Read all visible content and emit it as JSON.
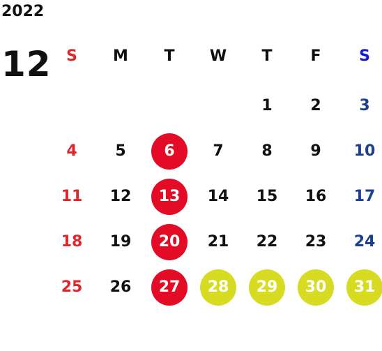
{
  "header": {
    "year": "2022",
    "month": "12"
  },
  "weekdays": [
    "S",
    "M",
    "T",
    "W",
    "T",
    "F",
    "S"
  ],
  "weeks": [
    [
      "",
      "",
      "",
      "",
      "1",
      "2",
      "3"
    ],
    [
      "4",
      "5",
      "6",
      "7",
      "8",
      "9",
      "10"
    ],
    [
      "11",
      "12",
      "13",
      "14",
      "15",
      "16",
      "17"
    ],
    [
      "18",
      "19",
      "20",
      "21",
      "22",
      "23",
      "24"
    ],
    [
      "25",
      "26",
      "27",
      "28",
      "29",
      "30",
      "31"
    ]
  ],
  "highlight": {
    "red_days": [
      "6",
      "13",
      "20",
      "27"
    ],
    "yellow_days": [
      "28",
      "29",
      "30",
      "31"
    ],
    "colors": {
      "sunday": "#e0262b",
      "saturday": "#1d3f8f",
      "saturday_header": "#1616d8",
      "red_circle": "#e30b26",
      "yellow_circle": "#d7dc22"
    }
  }
}
